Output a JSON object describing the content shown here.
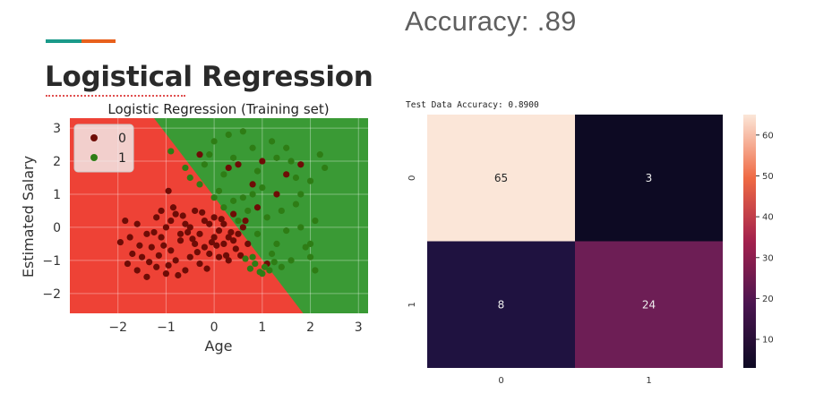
{
  "header": {
    "accuracy": "Accuracy: .89"
  },
  "slide": {
    "title": "Logistical Regression"
  },
  "chart_data": [
    {
      "type": "scatter",
      "title": "Logistic Regression (Training set)",
      "xlabel": "Age",
      "ylabel": "Estimated Salary",
      "xlim": [
        -3.0,
        3.2
      ],
      "ylim": [
        -2.6,
        3.3
      ],
      "xticks": [
        "−2",
        "−1",
        "0",
        "1",
        "2",
        "3"
      ],
      "yticks": [
        "−2",
        "−1",
        "0",
        "1",
        "2",
        "3"
      ],
      "legend_position": "top-left",
      "grid": true,
      "decision_boundary": {
        "x0": -1.25,
        "y0": 3.3,
        "x1": 1.85,
        "y1": -2.6
      },
      "region_colors": {
        "class0": "#ee4236",
        "class1": "#3a9a35"
      },
      "series": [
        {
          "name": "0",
          "color": "#6e0c06",
          "points": [
            [
              -1.95,
              -0.45
            ],
            [
              -1.8,
              -1.1
            ],
            [
              -1.7,
              -0.8
            ],
            [
              -1.6,
              -1.3
            ],
            [
              -1.5,
              -0.9
            ],
            [
              -1.4,
              -1.5
            ],
            [
              -1.3,
              -0.6
            ],
            [
              -1.2,
              -1.2
            ],
            [
              -1.1,
              -0.3
            ],
            [
              -1.0,
              -1.4
            ],
            [
              -0.9,
              -0.7
            ],
            [
              -0.8,
              -1.0
            ],
            [
              -0.7,
              -0.4
            ],
            [
              -0.6,
              -1.3
            ],
            [
              -0.5,
              -0.9
            ],
            [
              -0.4,
              -0.5
            ],
            [
              -0.3,
              -1.1
            ],
            [
              -0.2,
              -0.6
            ],
            [
              -0.1,
              -0.8
            ],
            [
              0.0,
              -0.3
            ],
            [
              0.1,
              -0.9
            ],
            [
              0.2,
              -0.5
            ],
            [
              0.3,
              -1.0
            ],
            [
              0.4,
              -0.4
            ],
            [
              -1.6,
              0.1
            ],
            [
              -1.4,
              -0.2
            ],
            [
              -1.2,
              0.3
            ],
            [
              -1.0,
              0.0
            ],
            [
              -0.8,
              0.4
            ],
            [
              -0.6,
              0.1
            ],
            [
              -0.4,
              0.5
            ],
            [
              -0.2,
              0.2
            ],
            [
              0.0,
              0.3
            ],
            [
              0.2,
              0.1
            ],
            [
              0.4,
              0.4
            ],
            [
              0.6,
              0.0
            ],
            [
              -1.1,
              0.5
            ],
            [
              -0.9,
              0.2
            ],
            [
              -0.7,
              -0.2
            ],
            [
              -0.5,
              0.0
            ],
            [
              -0.3,
              -0.2
            ],
            [
              -0.1,
              0.1
            ],
            [
              0.1,
              -0.1
            ],
            [
              0.3,
              -0.3
            ],
            [
              0.5,
              -0.2
            ],
            [
              0.7,
              -0.5
            ],
            [
              -1.85,
              0.2
            ],
            [
              -1.75,
              -0.3
            ],
            [
              -1.55,
              -0.55
            ],
            [
              -1.35,
              -1.05
            ],
            [
              -1.15,
              -0.85
            ],
            [
              -0.95,
              -1.15
            ],
            [
              -0.75,
              -1.45
            ],
            [
              -0.55,
              -0.15
            ],
            [
              -0.35,
              -0.75
            ],
            [
              -0.15,
              -1.25
            ],
            [
              0.05,
              -0.55
            ],
            [
              0.25,
              -0.85
            ],
            [
              0.45,
              -0.65
            ],
            [
              -0.85,
              0.6
            ],
            [
              -0.65,
              0.35
            ],
            [
              -0.45,
              -0.35
            ],
            [
              -0.25,
              0.45
            ],
            [
              -0.05,
              -0.45
            ],
            [
              0.15,
              0.25
            ],
            [
              0.35,
              -0.15
            ],
            [
              -1.05,
              -0.55
            ],
            [
              -1.25,
              -0.15
            ],
            [
              0.55,
              -0.85
            ],
            [
              0.65,
              0.2
            ],
            [
              -0.3,
              2.2
            ],
            [
              0.5,
              1.9
            ],
            [
              0.8,
              1.3
            ],
            [
              1.0,
              2.0
            ],
            [
              1.3,
              1.0
            ],
            [
              1.5,
              1.6
            ],
            [
              1.8,
              1.9
            ],
            [
              1.1,
              -1.1
            ],
            [
              0.9,
              0.6
            ],
            [
              -0.95,
              1.1
            ],
            [
              0.3,
              1.8
            ]
          ]
        },
        {
          "name": "1",
          "color": "#2e7d15",
          "points": [
            [
              -0.9,
              2.3
            ],
            [
              -0.6,
              1.8
            ],
            [
              -0.3,
              1.3
            ],
            [
              0.0,
              2.6
            ],
            [
              0.2,
              1.6
            ],
            [
              0.4,
              2.1
            ],
            [
              0.6,
              0.9
            ],
            [
              0.8,
              2.4
            ],
            [
              1.0,
              1.2
            ],
            [
              1.2,
              2.6
            ],
            [
              1.4,
              0.5
            ],
            [
              1.6,
              2.0
            ],
            [
              1.8,
              1.0
            ],
            [
              2.0,
              1.4
            ],
            [
              2.2,
              2.2
            ],
            [
              0.7,
              0.5
            ],
            [
              0.9,
              -0.2
            ],
            [
              1.1,
              0.3
            ],
            [
              1.3,
              -0.5
            ],
            [
              1.5,
              -0.1
            ],
            [
              1.7,
              0.7
            ],
            [
              1.9,
              -0.6
            ],
            [
              2.1,
              0.2
            ],
            [
              0.5,
              0.2
            ],
            [
              1.2,
              -0.8
            ],
            [
              1.4,
              -1.2
            ],
            [
              1.0,
              -1.4
            ],
            [
              0.8,
              -0.9
            ],
            [
              1.6,
              -1.0
            ],
            [
              2.0,
              -0.9
            ],
            [
              2.1,
              -1.3
            ],
            [
              0.3,
              2.8
            ],
            [
              -0.1,
              2.2
            ],
            [
              0.1,
              1.1
            ],
            [
              0.9,
              1.7
            ],
            [
              1.3,
              2.1
            ],
            [
              1.7,
              1.5
            ],
            [
              2.3,
              1.8
            ],
            [
              0.6,
              2.9
            ],
            [
              -0.5,
              1.5
            ],
            [
              1.05,
              -1.2
            ],
            [
              0.95,
              -1.35
            ],
            [
              0.85,
              -1.1
            ],
            [
              0.75,
              -1.25
            ],
            [
              1.15,
              -1.3
            ],
            [
              1.25,
              -1.05
            ],
            [
              0.65,
              -0.95
            ],
            [
              2.0,
              -0.5
            ],
            [
              1.8,
              0.0
            ],
            [
              0.2,
              0.6
            ],
            [
              0.4,
              0.8
            ],
            [
              0.0,
              0.9
            ],
            [
              -0.2,
              1.9
            ],
            [
              1.5,
              2.4
            ],
            [
              0.8,
              1.0
            ]
          ]
        }
      ]
    },
    {
      "type": "heatmap",
      "title": "Test Data Accuracy: 0.8900",
      "x_categories": [
        "0",
        "1"
      ],
      "y_categories": [
        "0",
        "1"
      ],
      "values": [
        [
          65,
          3
        ],
        [
          8,
          24
        ]
      ],
      "colorbar": {
        "min": 3,
        "max": 65,
        "ticks": [
          "10",
          "20",
          "30",
          "40",
          "50",
          "60"
        ]
      },
      "colors": {
        "65": "#fbe6d8",
        "3": "#0d0a23",
        "8": "#1f1240",
        "24": "#6d1e55"
      }
    }
  ]
}
